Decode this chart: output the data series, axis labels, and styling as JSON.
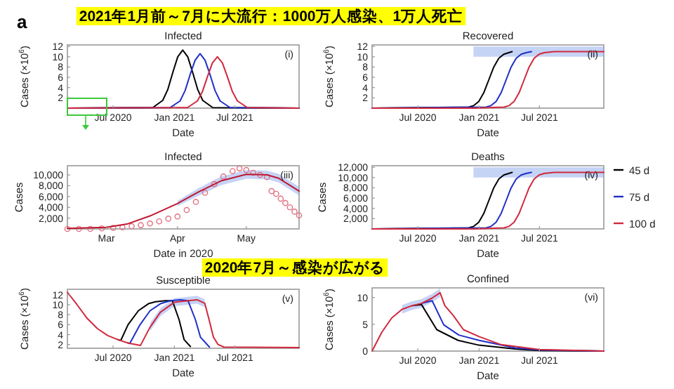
{
  "chart_data": [
    {
      "type": "line",
      "title": "Infected",
      "xlabel": "Date",
      "ylabel": "Cases (×10$^{6}$)",
      "annotations": [
        "(i)",
        "a",
        "2021年1月前～7月に大流行：1000万人感染、1万人死亡"
      ],
      "xlim": [
        "2020-02-15",
        "2022-01-10"
      ],
      "xticks": [
        {
          "value": "2020-07-01",
          "label": "Jul 2020"
        },
        {
          "value": "2021-01-01",
          "label": "Jan 2021"
        },
        {
          "value": "2021-07-01",
          "label": "Jul 2021"
        }
      ],
      "ylim": [
        0,
        12.3
      ],
      "yticks": [
        2,
        4,
        6,
        8,
        10,
        12
      ],
      "series": [
        {
          "color": "#000000",
          "x": [
            "2020-02-15",
            "2020-10-28",
            "2020-11-27",
            "2020-12-12",
            "2020-12-27",
            "2021-01-11",
            "2021-01-26",
            "2021-02-10",
            "2021-02-25",
            "2021-03-12",
            "2021-03-27",
            "2021-04-26",
            "2022-01-10"
          ],
          "values": [
            0,
            0.1,
            1.5,
            3.6,
            6.9,
            10.0,
            11.3,
            10.0,
            6.9,
            3.6,
            1.5,
            0.1,
            0
          ]
        },
        {
          "color": "#1f2fc8",
          "x": [
            "2020-02-15",
            "2020-12-19",
            "2021-01-18",
            "2021-02-02",
            "2021-02-17",
            "2021-03-04",
            "2021-03-19",
            "2021-04-03",
            "2021-04-18",
            "2021-05-03",
            "2021-05-18",
            "2021-06-17",
            "2022-01-10"
          ],
          "values": [
            0,
            0.1,
            1.4,
            3.4,
            6.5,
            9.3,
            10.6,
            9.3,
            6.5,
            3.4,
            1.4,
            0.1,
            0
          ]
        },
        {
          "color": "#d0283c",
          "x": [
            "2020-02-15",
            "2021-02-09",
            "2021-03-11",
            "2021-03-26",
            "2021-04-10",
            "2021-04-25",
            "2021-05-10",
            "2021-05-25",
            "2021-06-09",
            "2021-06-24",
            "2021-07-09",
            "2021-08-08",
            "2022-01-10"
          ],
          "values": [
            0,
            0.1,
            1.4,
            3.2,
            6.1,
            8.8,
            10,
            8.8,
            6.1,
            3.2,
            1.4,
            0.1,
            0
          ]
        }
      ]
    },
    {
      "type": "line",
      "title": "Recovered",
      "xlabel": "Date",
      "ylabel": "Cases (×10$^{6}$)",
      "annotations": [
        "(ii)"
      ],
      "xlim": [
        "2020-02-15",
        "2022-01-10"
      ],
      "xticks": [
        {
          "value": "2020-07-01",
          "label": "Jul 2020"
        },
        {
          "value": "2021-01-01",
          "label": "Jan 2021"
        },
        {
          "value": "2021-07-01",
          "label": "Jul 2021"
        }
      ],
      "ylim": [
        0,
        12.3
      ],
      "yticks": [
        2,
        4,
        6,
        8,
        10,
        12
      ],
      "series": [
        {
          "color": "#000000",
          "x": [
            "2020-02-15",
            "2020-12-01",
            "2020-12-16",
            "2020-12-31",
            "2021-01-15",
            "2021-01-30",
            "2021-02-14",
            "2021-03-01",
            "2021-03-16",
            "2021-03-31",
            "2021-04-10"
          ],
          "values": [
            0,
            0.2,
            0.5,
            1.3,
            3.0,
            5.5,
            8.0,
            9.7,
            10.5,
            10.8,
            11
          ]
        },
        {
          "color": "#1f2fc8",
          "x": [
            "2020-02-15",
            "2021-01-22",
            "2021-02-06",
            "2021-02-21",
            "2021-03-08",
            "2021-03-23",
            "2021-04-07",
            "2021-04-22",
            "2021-05-07",
            "2021-05-22",
            "2021-06-07"
          ],
          "values": [
            0,
            0.2,
            0.5,
            1.3,
            3.0,
            5.5,
            8.0,
            9.7,
            10.5,
            10.8,
            11
          ]
        },
        {
          "color": "#d0283c",
          "x": [
            "2020-02-15",
            "2020-12-15",
            "2021-03-17",
            "2021-04-01",
            "2021-04-16",
            "2021-05-01",
            "2021-05-16",
            "2021-05-31",
            "2021-06-15",
            "2021-06-30",
            "2021-07-15",
            "2021-08-14",
            "2022-01-10"
          ],
          "values": [
            0,
            0,
            0.2,
            0.5,
            1.3,
            3.0,
            5.5,
            8.0,
            9.7,
            10.5,
            10.8,
            11,
            11
          ],
          "lower": [
            null,
            10,
            10,
            10,
            10,
            10,
            10,
            10,
            10,
            10,
            10,
            10,
            10
          ],
          "upper": [
            null,
            12,
            12,
            12,
            12,
            12,
            12,
            12,
            12,
            12,
            12,
            12,
            12
          ]
        }
      ]
    },
    {
      "type": "line",
      "title": "Infected",
      "xlabel": "Date in 2020",
      "ylabel": "Cases",
      "annotations": [
        "(iii)"
      ],
      "xlim": [
        "2020-02-13",
        "2020-05-24"
      ],
      "xticks": [
        {
          "value": "2020-03-01",
          "label": "Mar"
        },
        {
          "value": "2020-04-01",
          "label": "Apr"
        },
        {
          "value": "2020-05-01",
          "label": "May"
        }
      ],
      "ylim": [
        0,
        11700
      ],
      "yticks": [
        {
          "value": 2000,
          "label": "2,000"
        },
        {
          "value": 4000,
          "label": "4,000"
        },
        {
          "value": 6000,
          "label": "6,000"
        },
        {
          "value": 8000,
          "label": "8,000"
        },
        {
          "value": 10000,
          "label": "10,000"
        }
      ],
      "series": [
        {
          "type": "scatter",
          "marker": "circle",
          "color": "#e07080",
          "x": [
            "2020-02-13",
            "2020-02-18",
            "2020-02-23",
            "2020-02-28",
            "2020-03-04",
            "2020-03-08",
            "2020-03-12",
            "2020-03-16",
            "2020-03-20",
            "2020-03-24",
            "2020-03-28",
            "2020-04-01",
            "2020-04-05",
            "2020-04-09",
            "2020-04-13",
            "2020-04-17",
            "2020-04-21",
            "2020-04-25",
            "2020-04-28",
            "2020-05-01",
            "2020-05-04",
            "2020-05-07",
            "2020-05-10",
            "2020-05-12",
            "2020-05-14",
            "2020-05-16",
            "2020-05-18",
            "2020-05-20",
            "2020-05-22",
            "2020-05-24"
          ],
          "values": [
            0,
            0,
            0,
            100,
            200,
            300,
            500,
            700,
            1000,
            1400,
            1900,
            2300,
            3500,
            5000,
            6700,
            8300,
            9700,
            10700,
            11200,
            10900,
            10400,
            10000,
            9600,
            7000,
            6500,
            5600,
            4800,
            4000,
            3200,
            2500
          ]
        },
        {
          "color": "#c01830",
          "x": [
            "2020-02-13",
            "2020-03-01",
            "2020-03-10",
            "2020-03-20",
            "2020-04-01",
            "2020-04-10",
            "2020-04-20",
            "2020-05-01",
            "2020-05-10",
            "2020-05-15",
            "2020-05-24"
          ],
          "values": [
            100,
            300,
            900,
            2400,
            4700,
            6800,
            8900,
            10100,
            10000,
            9400,
            7000
          ],
          "lower": [
            null,
            null,
            null,
            null,
            4200,
            6100,
            8100,
            9300,
            9200,
            8600,
            6200
          ],
          "upper": [
            null,
            null,
            null,
            null,
            5200,
            7500,
            9700,
            10900,
            10800,
            10200,
            7800
          ]
        }
      ]
    },
    {
      "type": "line",
      "title": "Deaths",
      "xlabel": "Date",
      "ylabel": "Cases",
      "annotations": [
        "(iv)"
      ],
      "legend": "right",
      "xlim": [
        "2020-02-15",
        "2022-01-10"
      ],
      "xticks": [
        {
          "value": "2020-07-01",
          "label": "Jul 2020"
        },
        {
          "value": "2021-01-01",
          "label": "Jan 2021"
        },
        {
          "value": "2021-07-01",
          "label": "Jul 2021"
        }
      ],
      "ylim": [
        0,
        12300
      ],
      "yticks": [
        {
          "value": 2000,
          "label": "2,000"
        },
        {
          "value": 4000,
          "label": "4,000"
        },
        {
          "value": 6000,
          "label": "6,000"
        },
        {
          "value": 8000,
          "label": "8,000"
        },
        {
          "value": 10000,
          "label": "10,000"
        },
        {
          "value": 12000,
          "label": "12,000"
        }
      ],
      "series": [
        {
          "name": "45 d",
          "color": "#000000",
          "x": [
            "2020-02-15",
            "2020-12-01",
            "2020-12-16",
            "2020-12-31",
            "2021-01-15",
            "2021-01-30",
            "2021-02-14",
            "2021-03-01",
            "2021-03-16",
            "2021-03-31",
            "2021-04-10"
          ],
          "values": [
            0,
            200,
            500,
            1300,
            3000,
            5500,
            8000,
            9700,
            10500,
            10800,
            11000
          ]
        },
        {
          "name": "75 d",
          "color": "#1f2fc8",
          "x": [
            "2020-02-15",
            "2021-01-22",
            "2021-02-06",
            "2021-02-21",
            "2021-03-08",
            "2021-03-23",
            "2021-04-07",
            "2021-04-22",
            "2021-05-07",
            "2021-05-22",
            "2021-06-07"
          ],
          "values": [
            0,
            200,
            500,
            1300,
            3000,
            5500,
            8000,
            9700,
            10500,
            10800,
            11000
          ]
        },
        {
          "name": "100 d",
          "color": "#d0283c",
          "x": [
            "2020-02-15",
            "2020-12-15",
            "2021-03-17",
            "2021-04-01",
            "2021-04-16",
            "2021-05-01",
            "2021-05-16",
            "2021-05-31",
            "2021-06-15",
            "2021-06-30",
            "2021-07-15",
            "2021-08-14",
            "2022-01-10"
          ],
          "values": [
            0,
            0,
            200,
            500,
            1300,
            3000,
            5500,
            8000,
            9700,
            10500,
            10800,
            11000,
            11000
          ],
          "lower": [
            null,
            10000,
            10000,
            10000,
            10000,
            10000,
            10000,
            10000,
            10000,
            10000,
            10000,
            10000,
            10000
          ],
          "upper": [
            null,
            12000,
            12000,
            12000,
            12000,
            12000,
            12000,
            12000,
            12000,
            12000,
            12000,
            12000,
            12000
          ]
        }
      ]
    },
    {
      "type": "line",
      "title": "Susceptible",
      "xlabel": "Date",
      "ylabel": "Cases (×10$^{6}$)",
      "annotations": [
        "(v)",
        "2020年7月～感染が広がる"
      ],
      "xlim": [
        "2020-02-15",
        "2022-01-10"
      ],
      "xticks": [
        {
          "value": "2020-07-01",
          "label": "Jul 2020"
        },
        {
          "value": "2021-01-01",
          "label": "Jan 2021"
        },
        {
          "value": "2021-07-01",
          "label": "Jul 2021"
        }
      ],
      "ylim": [
        1.25,
        13.1
      ],
      "yticks": [
        2,
        4,
        6,
        8,
        10,
        12
      ],
      "series": [
        {
          "color": "#000000",
          "x": [
            "2020-07-15",
            "2020-07-24",
            "2020-08-15",
            "2020-09-15",
            "2020-10-15",
            "2020-11-05",
            "2020-12-05",
            "2020-12-26",
            "2021-01-15",
            "2021-01-30",
            "2021-02-18"
          ],
          "values": [
            3.0,
            2.8,
            6,
            8.8,
            10.2,
            10.6,
            10.8,
            10.8,
            7,
            3,
            1.6
          ]
        },
        {
          "color": "#1f2fc8",
          "x": [
            "2020-08-15",
            "2020-08-20",
            "2020-09-20",
            "2020-10-20",
            "2020-11-20",
            "2020-12-20",
            "2021-01-20",
            "2021-02-11",
            "2021-03-05",
            "2021-03-20",
            "2021-04-16"
          ],
          "values": [
            2.3,
            2.2,
            6,
            8.8,
            10.2,
            10.8,
            11,
            10.8,
            7,
            3.5,
            1.5
          ]
        },
        {
          "color": "#d0283c",
          "x": [
            "2020-02-15",
            "2020-03-15",
            "2020-04-15",
            "2020-05-15",
            "2020-06-15",
            "2020-07-15",
            "2020-08-15",
            "2020-09-21",
            "2020-10-20",
            "2020-11-20",
            "2021-01-01",
            "2021-03-10",
            "2021-04-02",
            "2021-04-15",
            "2021-04-28",
            "2021-05-12",
            "2021-05-29",
            "2022-01-10"
          ],
          "values": [
            12.5,
            10,
            7.2,
            5.2,
            3.8,
            3.0,
            2.3,
            1.8,
            5.5,
            8.5,
            10.5,
            11,
            10.3,
            7,
            3.5,
            2,
            1.5,
            1.4
          ],
          "lower": [
            null,
            null,
            null,
            null,
            null,
            null,
            null,
            null,
            4.7,
            7.7,
            9.7,
            10.2,
            9.5,
            null,
            null,
            null,
            null,
            null
          ],
          "upper": [
            null,
            null,
            null,
            null,
            null,
            null,
            null,
            null,
            6.3,
            9.3,
            11.3,
            11.8,
            11.1,
            null,
            null,
            null,
            null,
            null
          ]
        }
      ]
    },
    {
      "type": "line",
      "title": "Confined",
      "xlabel": "Date",
      "ylabel": "Cases (×10$^{6}$)",
      "annotations": [
        "(vi)"
      ],
      "xlim": [
        "2020-02-15",
        "2022-01-10"
      ],
      "xticks": [
        {
          "value": "2020-07-01",
          "label": "Jul 2020"
        },
        {
          "value": "2021-01-01",
          "label": "Jan 2021"
        },
        {
          "value": "2021-07-01",
          "label": "Jul 2021"
        }
      ],
      "ylim": [
        0,
        11.8
      ],
      "yticks": [
        0,
        5,
        10
      ],
      "series": [
        {
          "color": "#000000",
          "x": [
            "2020-06-15",
            "2020-07-12",
            "2020-08-27",
            "2020-10-30",
            "2021-01-01",
            "2021-04-19",
            "2021-07-01",
            "2022-01-10"
          ],
          "values": [
            8.5,
            8.7,
            4.0,
            2.0,
            1.1,
            0.4,
            0.1,
            0
          ]
        },
        {
          "color": "#1f2fc8",
          "x": [
            "2020-07-12",
            "2020-08-13",
            "2020-09-17",
            "2020-11-01",
            "2021-01-01",
            "2021-04-19",
            "2021-07-01",
            "2022-01-10"
          ],
          "values": [
            8.9,
            9.4,
            4.9,
            3.0,
            2.0,
            0.6,
            0.2,
            0
          ]
        },
        {
          "color": "#d0283c",
          "x": [
            "2020-02-15",
            "2020-03-15",
            "2020-04-14",
            "2020-05-15",
            "2020-06-15",
            "2020-07-12",
            "2020-08-13",
            "2020-09-06",
            "2020-09-20",
            "2020-10-16",
            "2020-11-15",
            "2021-01-01",
            "2021-03-08",
            "2021-07-01",
            "2022-01-10"
          ],
          "values": [
            0,
            3.5,
            6.2,
            7.8,
            8.5,
            8.9,
            9.9,
            10.9,
            8.5,
            6.6,
            4.0,
            2.7,
            1.2,
            0.3,
            0
          ],
          "lower": [
            null,
            null,
            null,
            7.0,
            7.7,
            8.1,
            9.1,
            10.1,
            null,
            null,
            null,
            null,
            null,
            null,
            null
          ],
          "upper": [
            null,
            null,
            null,
            8.6,
            9.3,
            9.7,
            10.7,
            11.7,
            null,
            null,
            null,
            null,
            null,
            null,
            null
          ]
        }
      ]
    }
  ]
}
